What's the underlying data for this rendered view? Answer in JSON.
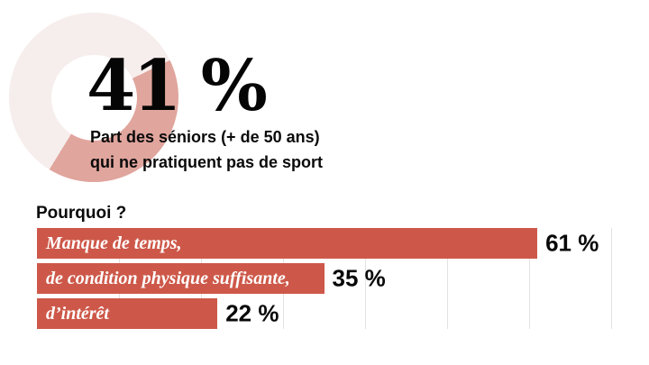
{
  "colors": {
    "background": "#ffffff",
    "bar": "#cd5849",
    "donut_segment": "#e0a59d",
    "donut_track": "#f6eeec",
    "gridline": "#e2e2e2",
    "text": "#0a0a0a",
    "bar_label_text": "#ffffff"
  },
  "stat": {
    "value": "41 %",
    "caption_line1": "Part des séniors (+ de 50 ans)",
    "caption_line2": "qui ne pratiquent pas de sport"
  },
  "chart_data": [
    {
      "type": "donut",
      "value": 41,
      "unit": "%",
      "label_line1": "Part des séniors (+ de 50 ans)",
      "label_line2": "qui ne pratiquent pas de sport",
      "segment_color": "#e0a59d",
      "track_color": "#f6eeec"
    },
    {
      "type": "bar",
      "orientation": "horizontal",
      "title": "Pourquoi ?",
      "categories": [
        "Manque de temps,",
        "de condition physique suffisante,",
        "d’intérêt"
      ],
      "values": [
        61,
        35,
        22
      ],
      "value_labels": [
        "61 %",
        "35 %",
        "22 %"
      ],
      "xlim": [
        0,
        70
      ],
      "gridline_step": 10,
      "grid": "vertical",
      "legend": "none",
      "bar_color": "#cd5849"
    }
  ]
}
